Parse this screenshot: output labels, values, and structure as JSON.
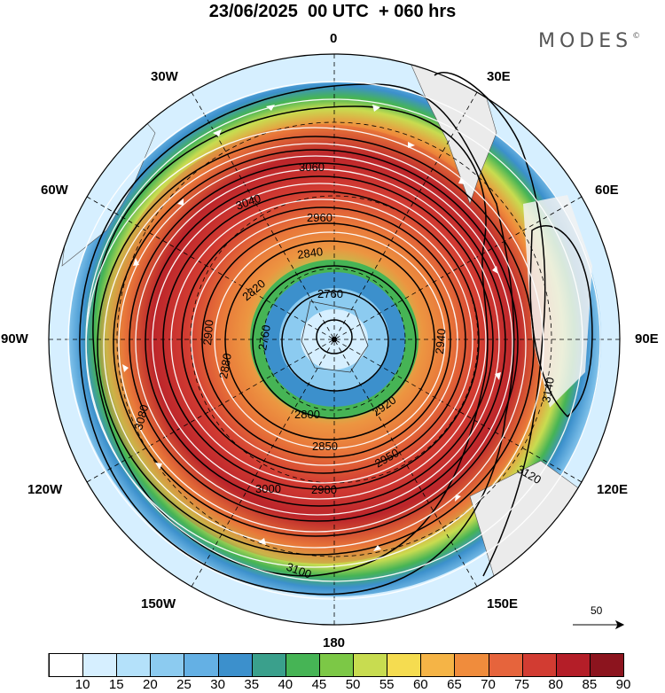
{
  "header": {
    "title": "23/06/2025  00 UTC  + 060 hrs",
    "brand": "MODES",
    "brand_mark": "©"
  },
  "longitude_labels": {
    "n": "0",
    "e30": "30E",
    "e60": "60E",
    "e90": "90E",
    "e120": "120E",
    "e150": "150E",
    "s": "180",
    "w150": "150W",
    "w120": "120W",
    "w90": "90W",
    "w60": "60W",
    "w30": "30W"
  },
  "contour_labels": [
    "2760",
    "2760",
    "2800",
    "2820",
    "2840",
    "2850",
    "2880",
    "2900",
    "2920",
    "2940",
    "2950",
    "2960",
    "2980",
    "3000",
    "3040",
    "3060",
    "3080",
    "3100",
    "3120",
    "3140"
  ],
  "reference_vector": {
    "label": "50"
  },
  "colorbar": {
    "labels": [
      "10",
      "15",
      "20",
      "25",
      "30",
      "35",
      "40",
      "45",
      "50",
      "55",
      "60",
      "65",
      "70",
      "75",
      "80",
      "85",
      "90"
    ],
    "colors": [
      "#ffffff",
      "#d6efff",
      "#b4e1fa",
      "#8ccbf0",
      "#64b0e4",
      "#3c90cc",
      "#3aa08c",
      "#46b455",
      "#7cc846",
      "#c8dc50",
      "#f5dc50",
      "#f5b446",
      "#f08c3c",
      "#e6643c",
      "#d23c32",
      "#b41e28",
      "#8c141e"
    ]
  },
  "colors": {
    "land": "#ebebeb",
    "wind_arrow": "#ffffff",
    "contour": "#000000"
  }
}
